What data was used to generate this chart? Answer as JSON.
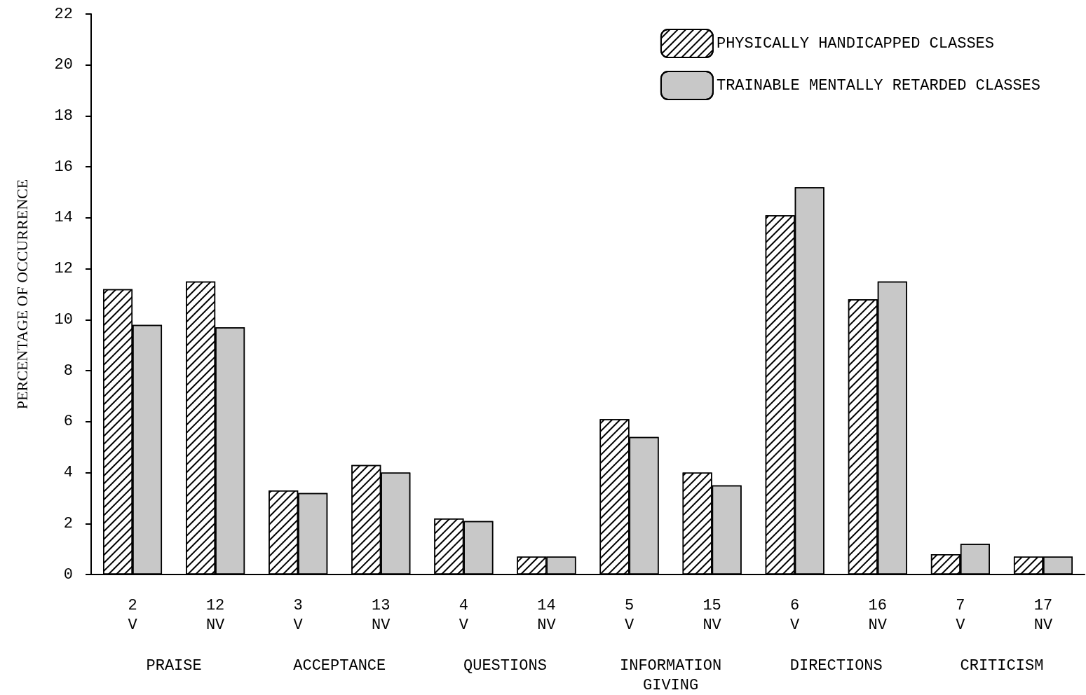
{
  "chart_data": {
    "type": "bar",
    "ylabel": "PERCENTAGE OF OCCURRENCE",
    "categories": [
      "2\nV",
      "12\nNV",
      "3\nV",
      "13\nNV",
      "4\nV",
      "14\nNV",
      "5\nV",
      "15\nNV",
      "6\nV",
      "16\nNV",
      "7\nV",
      "17\nNV"
    ],
    "series": [
      {
        "name": "PHYSICALLY HANDICAPPED CLASSES",
        "color": "#ffffff",
        "values": [
          11.2,
          11.5,
          3.3,
          4.3,
          2.2,
          0.7,
          6.1,
          4.0,
          14.1,
          10.8,
          0.8,
          0.7
        ]
      },
      {
        "name": "TRAINABLE MENTALLY RETARDED CLASSES",
        "color": "#c8c8c8",
        "values": [
          9.8,
          9.7,
          3.2,
          4.0,
          2.1,
          0.7,
          5.4,
          3.5,
          15.2,
          11.5,
          1.2,
          0.7
        ]
      }
    ],
    "annotations": [
      "PRAISE",
      "ACCEPTANCE",
      "QUESTIONS",
      "INFORMATION\nGIVING",
      "DIRECTIONS",
      "CRITICISM"
    ],
    "ylim": [
      0,
      22
    ],
    "yticks": [
      0,
      2,
      4,
      6,
      8,
      10,
      12,
      14,
      16,
      18,
      20,
      22
    ],
    "grid": false,
    "legend": "top right"
  }
}
